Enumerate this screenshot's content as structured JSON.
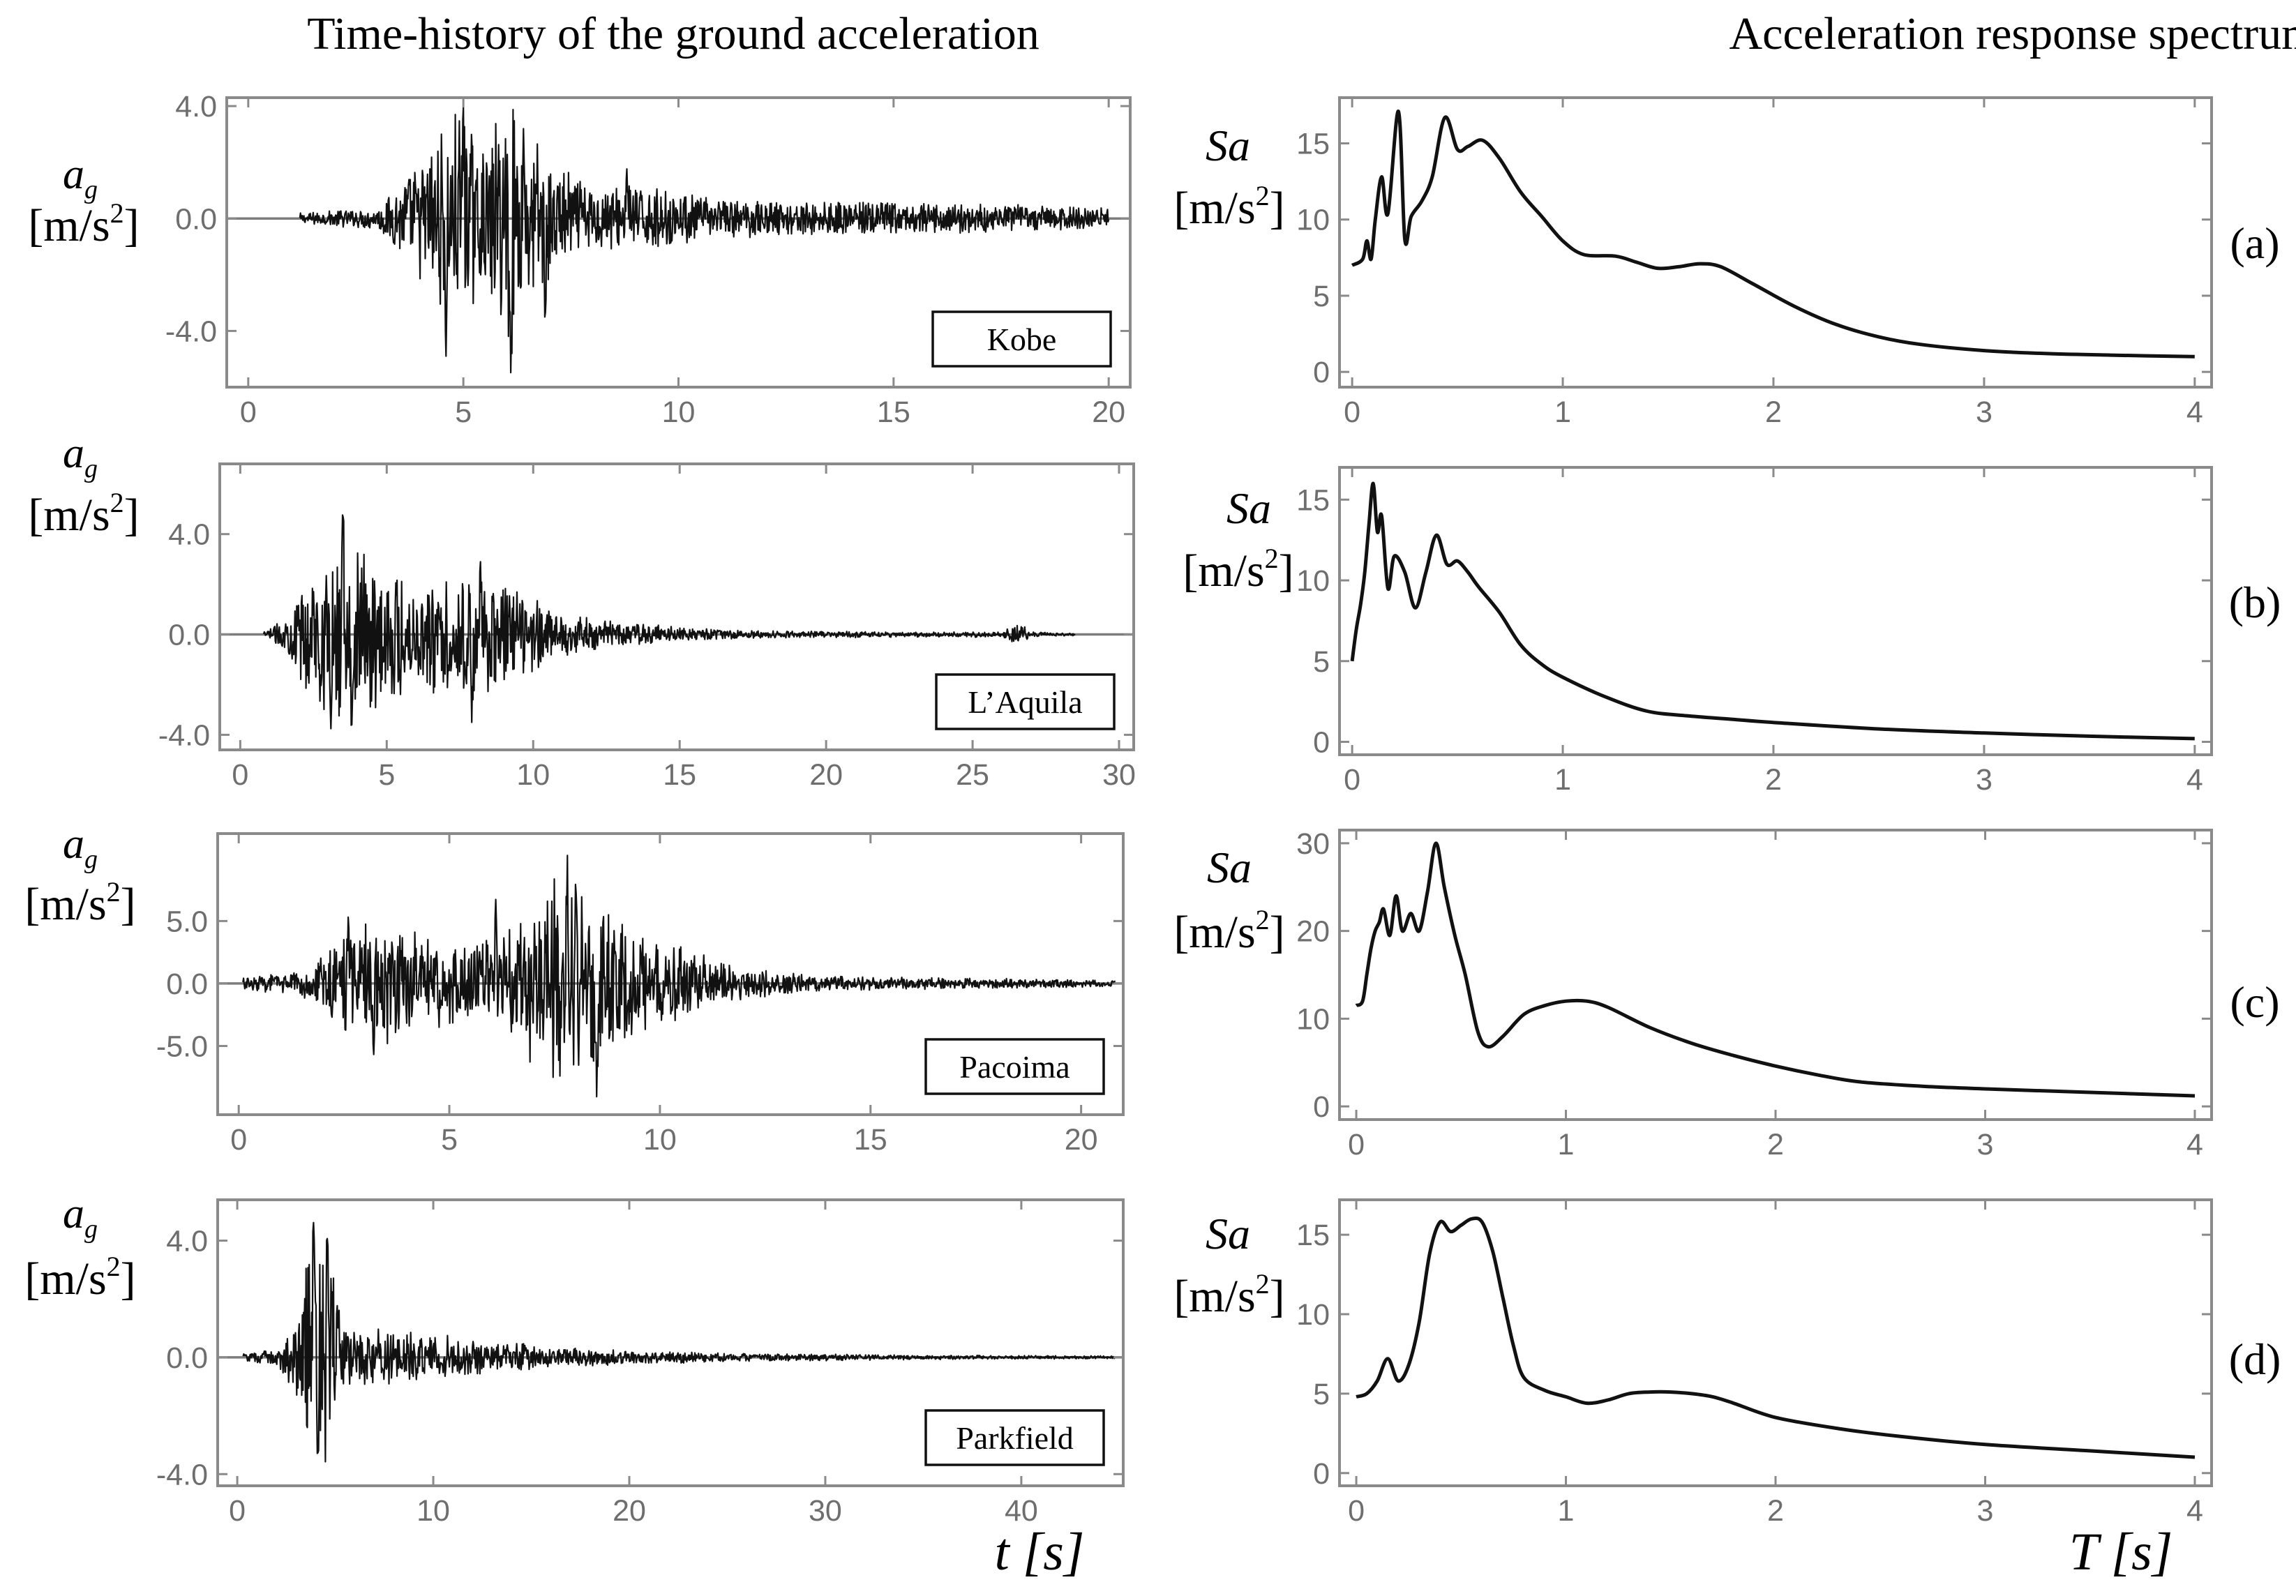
{
  "column_titles": {
    "left": "Time-history of the ground acceleration",
    "right": "Acceleration response spectrum"
  },
  "axis_labels": {
    "ag_symbol": "a",
    "ag_subscript": "g",
    "unit_open": "[m/s",
    "unit_power": "2",
    "unit_close": "]",
    "sa_symbol": "Sa",
    "time_label": "t [s]",
    "period_label": "T [s]"
  },
  "chart_data": [
    {
      "id": "kobe-acc",
      "type": "line",
      "title": "Time-history of the ground acceleration",
      "legend": "Kobe",
      "xlabel": "t [s]",
      "ylabel": "a_g [m/s^2]",
      "xlim": [
        -0.5,
        20.5
      ],
      "ylim": [
        -6.0,
        4.3
      ],
      "xticks": [
        0,
        5,
        10,
        15,
        20
      ],
      "xtick_labels": [
        "0",
        "5",
        "10",
        "15",
        "20"
      ],
      "yticks": [
        4.0,
        0.0,
        -4.0
      ],
      "ytick_labels": [
        "4.0",
        "0.0",
        "-4.0"
      ],
      "record_start": 1.2,
      "record_end": 20,
      "envelope": [
        [
          1.2,
          0.2
        ],
        [
          3.0,
          0.4
        ],
        [
          4.3,
          2.8
        ],
        [
          5.0,
          4.2
        ],
        [
          5.5,
          2.5
        ],
        [
          6.0,
          5.0
        ],
        [
          6.5,
          3.5
        ],
        [
          7.2,
          2.0
        ],
        [
          8.0,
          1.2
        ],
        [
          9.0,
          1.2
        ],
        [
          11.0,
          0.7
        ],
        [
          15.0,
          0.6
        ],
        [
          20.0,
          0.45
        ]
      ],
      "spikes": [
        [
          4.6,
          -5.2
        ],
        [
          5.0,
          4.0
        ],
        [
          6.1,
          -5.6
        ],
        [
          6.4,
          3.3
        ],
        [
          6.9,
          -4.0
        ],
        [
          8.8,
          1.8
        ]
      ]
    },
    {
      "id": "kobe-sa",
      "type": "line",
      "title": "Acceleration response spectrum",
      "panel_label": "(a)",
      "xlabel": "T [s]",
      "ylabel": "Sa [m/s^2]",
      "xlim": [
        -0.06,
        4.08
      ],
      "ylim": [
        -1.0,
        18.0
      ],
      "xticks": [
        0,
        1,
        2,
        3,
        4
      ],
      "xtick_labels": [
        "0",
        "1",
        "2",
        "3",
        "4"
      ],
      "yticks": [
        0,
        5,
        10,
        15
      ],
      "ytick_labels": [
        "0",
        "5",
        "10",
        "15"
      ],
      "x": [
        0,
        0.05,
        0.07,
        0.09,
        0.11,
        0.14,
        0.17,
        0.22,
        0.25,
        0.28,
        0.33,
        0.38,
        0.44,
        0.5,
        0.55,
        0.62,
        0.7,
        0.8,
        0.9,
        1.0,
        1.1,
        1.25,
        1.35,
        1.45,
        1.55,
        1.65,
        1.75,
        1.9,
        2.1,
        2.3,
        2.5,
        2.7,
        3.0,
        3.3,
        3.6,
        4.0
      ],
      "y": [
        7.0,
        7.4,
        8.6,
        7.4,
        10.0,
        12.8,
        10.4,
        17.1,
        8.7,
        10.2,
        11.2,
        12.8,
        16.7,
        14.6,
        14.8,
        15.2,
        14.0,
        11.8,
        10.2,
        8.6,
        7.7,
        7.6,
        7.2,
        6.8,
        6.9,
        7.1,
        6.9,
        5.8,
        4.3,
        3.1,
        2.3,
        1.8,
        1.4,
        1.2,
        1.1,
        1.0
      ]
    },
    {
      "id": "laquila-acc",
      "type": "line",
      "legend": "L’Aquila",
      "xlabel": "t [s]",
      "ylabel": "a_g [m/s^2]",
      "xlim": [
        -0.7,
        30.5
      ],
      "ylim": [
        -4.6,
        6.8
      ],
      "xticks": [
        0,
        5,
        10,
        15,
        20,
        25,
        30
      ],
      "xtick_labels": [
        "0",
        "5",
        "10",
        "15",
        "20",
        "25",
        "30"
      ],
      "yticks": [
        4.0,
        0.0,
        -4.0
      ],
      "ytick_labels": [
        "4.0",
        "0.0",
        "-4.0"
      ],
      "record_start": 0.8,
      "record_end": 28.5,
      "envelope": [
        [
          0.8,
          0.1
        ],
        [
          1.5,
          0.6
        ],
        [
          2.2,
          2.5
        ],
        [
          3.0,
          3.8
        ],
        [
          4.0,
          3.5
        ],
        [
          6.0,
          2.5
        ],
        [
          8.0,
          2.6
        ],
        [
          9.5,
          2.0
        ],
        [
          11.0,
          0.9
        ],
        [
          13.0,
          0.5
        ],
        [
          15.0,
          0.3
        ],
        [
          18.0,
          0.15
        ],
        [
          24.0,
          0.1
        ],
        [
          26.0,
          0.12
        ],
        [
          26.5,
          0.55
        ],
        [
          27.0,
          0.1
        ],
        [
          28.5,
          0.05
        ]
      ],
      "spikes": [
        [
          3.1,
          -4.2
        ],
        [
          3.5,
          6.2
        ],
        [
          3.8,
          -4.0
        ],
        [
          7.9,
          -3.6
        ],
        [
          8.2,
          2.9
        ]
      ]
    },
    {
      "id": "laquila-sa",
      "type": "line",
      "panel_label": "(b)",
      "xlabel": "T [s]",
      "ylabel": "Sa [m/s^2]",
      "xlim": [
        -0.06,
        4.08
      ],
      "ylim": [
        -0.8,
        17.0
      ],
      "xticks": [
        0,
        1,
        2,
        3,
        4
      ],
      "xtick_labels": [
        "0",
        "1",
        "2",
        "3",
        "4"
      ],
      "yticks": [
        0,
        5,
        10,
        15
      ],
      "ytick_labels": [
        "0",
        "5",
        "10",
        "15"
      ],
      "x": [
        0,
        0.02,
        0.04,
        0.06,
        0.08,
        0.1,
        0.12,
        0.14,
        0.17,
        0.2,
        0.25,
        0.3,
        0.35,
        0.4,
        0.45,
        0.5,
        0.55,
        0.6,
        0.7,
        0.8,
        0.9,
        1.0,
        1.2,
        1.4,
        1.6,
        1.8,
        2.0,
        2.5,
        3.0,
        3.5,
        4.0
      ],
      "y": [
        5.0,
        7.0,
        8.5,
        10.5,
        13.5,
        16.0,
        13.0,
        14.0,
        9.5,
        11.5,
        10.5,
        8.3,
        10.5,
        12.8,
        11.0,
        11.2,
        10.5,
        9.6,
        8.0,
        6.0,
        4.8,
        4.0,
        2.8,
        1.9,
        1.6,
        1.4,
        1.2,
        0.8,
        0.55,
        0.35,
        0.2
      ]
    },
    {
      "id": "pacoima-acc",
      "type": "line",
      "legend": "Pacoima",
      "xlabel": "t [s]",
      "ylabel": "a_g [m/s^2]",
      "xlim": [
        -0.5,
        21.0
      ],
      "ylim": [
        -10.5,
        12.0
      ],
      "xticks": [
        0,
        5,
        10,
        15,
        20
      ],
      "xtick_labels": [
        "0",
        "5",
        "10",
        "15",
        "20"
      ],
      "yticks": [
        5.0,
        0.0,
        -5.0
      ],
      "ytick_labels": [
        "5.0",
        "0.0",
        "-5.0"
      ],
      "record_start": 0.1,
      "record_end": 20.8,
      "envelope": [
        [
          0.1,
          0.5
        ],
        [
          1.5,
          1.0
        ],
        [
          2.5,
          4.5
        ],
        [
          3.3,
          5.5
        ],
        [
          4.5,
          4.0
        ],
        [
          5.5,
          3.0
        ],
        [
          6.5,
          5.0
        ],
        [
          7.5,
          8.5
        ],
        [
          8.5,
          7.0
        ],
        [
          9.5,
          4.0
        ],
        [
          11.0,
          2.5
        ],
        [
          12.0,
          1.3
        ],
        [
          14.0,
          0.6
        ],
        [
          17.0,
          0.45
        ],
        [
          20.8,
          0.3
        ]
      ],
      "spikes": [
        [
          2.6,
          5.5
        ],
        [
          3.2,
          -6.8
        ],
        [
          6.1,
          7.2
        ],
        [
          7.8,
          11.0
        ],
        [
          8.0,
          8.5
        ],
        [
          8.5,
          -9.5
        ]
      ]
    },
    {
      "id": "pacoima-sa",
      "type": "line",
      "panel_label": "(c)",
      "xlabel": "T [s]",
      "ylabel": "Sa [m/s^2]",
      "xlim": [
        -0.08,
        4.08
      ],
      "ylim": [
        -1.5,
        31.5
      ],
      "xticks": [
        0,
        1,
        2,
        3,
        4
      ],
      "xtick_labels": [
        "0",
        "1",
        "2",
        "3",
        "4"
      ],
      "yticks": [
        0,
        10,
        20,
        30
      ],
      "ytick_labels": [
        "0",
        "10",
        "20",
        "30"
      ],
      "x": [
        0,
        0.03,
        0.05,
        0.07,
        0.09,
        0.11,
        0.13,
        0.16,
        0.19,
        0.22,
        0.26,
        0.3,
        0.34,
        0.38,
        0.42,
        0.47,
        0.52,
        0.58,
        0.63,
        0.7,
        0.8,
        0.9,
        1.0,
        1.1,
        1.2,
        1.4,
        1.6,
        1.8,
        2.0,
        2.2,
        2.4,
        2.7,
        3.0,
        3.5,
        4.0
      ],
      "y": [
        11.5,
        12.0,
        15.0,
        18.0,
        20.0,
        21.0,
        22.5,
        19.5,
        24.0,
        20.0,
        22.0,
        20.0,
        24.5,
        30.0,
        25.0,
        19.5,
        15.0,
        8.5,
        6.8,
        8.0,
        10.5,
        11.5,
        12.0,
        12.0,
        11.3,
        9.0,
        7.2,
        5.8,
        4.6,
        3.6,
        2.8,
        2.3,
        2.0,
        1.6,
        1.2
      ]
    },
    {
      "id": "parkfield-acc",
      "type": "line",
      "legend": "Parkfield",
      "xlabel": "t [s]",
      "ylabel": "a_g [m/s^2]",
      "xlim": [
        -1.0,
        45.2
      ],
      "ylim": [
        -4.4,
        5.4
      ],
      "xticks": [
        0,
        10,
        20,
        30,
        40
      ],
      "xtick_labels": [
        "0",
        "10",
        "20",
        "30",
        "40"
      ],
      "yticks": [
        4.0,
        0.0,
        -4.0
      ],
      "ytick_labels": [
        "4.0",
        "0.0",
        "-4.0"
      ],
      "record_start": 0.3,
      "record_end": 44.8,
      "envelope": [
        [
          0.3,
          0.15
        ],
        [
          2.0,
          0.3
        ],
        [
          3.0,
          1.2
        ],
        [
          3.8,
          4.5
        ],
        [
          4.5,
          3.8
        ],
        [
          5.5,
          1.2
        ],
        [
          7.0,
          1.0
        ],
        [
          10.0,
          0.8
        ],
        [
          13.0,
          0.6
        ],
        [
          16.0,
          0.35
        ],
        [
          20.0,
          0.25
        ],
        [
          25.0,
          0.15
        ],
        [
          35.0,
          0.08
        ],
        [
          44.8,
          0.05
        ]
      ],
      "spikes": [
        [
          3.9,
          5.0
        ],
        [
          4.1,
          -4.1
        ],
        [
          4.6,
          4.4
        ]
      ]
    },
    {
      "id": "parkfield-sa",
      "type": "line",
      "panel_label": "(d)",
      "xlabel": "T [s]",
      "ylabel": "Sa [m/s^2]",
      "xlim": [
        -0.08,
        4.08
      ],
      "ylim": [
        -0.8,
        17.2
      ],
      "xticks": [
        0,
        1,
        2,
        3,
        4
      ],
      "xtick_labels": [
        "0",
        "1",
        "2",
        "3",
        "4"
      ],
      "yticks": [
        0,
        5,
        10,
        15
      ],
      "ytick_labels": [
        "0",
        "5",
        "10",
        "15"
      ],
      "x": [
        0,
        0.05,
        0.1,
        0.15,
        0.2,
        0.25,
        0.3,
        0.35,
        0.4,
        0.45,
        0.5,
        0.55,
        0.6,
        0.65,
        0.7,
        0.75,
        0.8,
        0.9,
        1.0,
        1.1,
        1.2,
        1.3,
        1.4,
        1.5,
        1.6,
        1.7,
        1.8,
        2.0,
        2.3,
        2.6,
        3.0,
        3.5,
        4.0
      ],
      "y": [
        4.8,
        5.0,
        5.8,
        7.2,
        5.8,
        6.8,
        9.5,
        13.8,
        15.8,
        15.2,
        15.6,
        16.0,
        15.8,
        14.0,
        11.0,
        8.0,
        6.0,
        5.2,
        4.8,
        4.4,
        4.6,
        5.0,
        5.1,
        5.1,
        5.0,
        4.8,
        4.4,
        3.5,
        2.8,
        2.3,
        1.8,
        1.4,
        1.0
      ]
    }
  ]
}
